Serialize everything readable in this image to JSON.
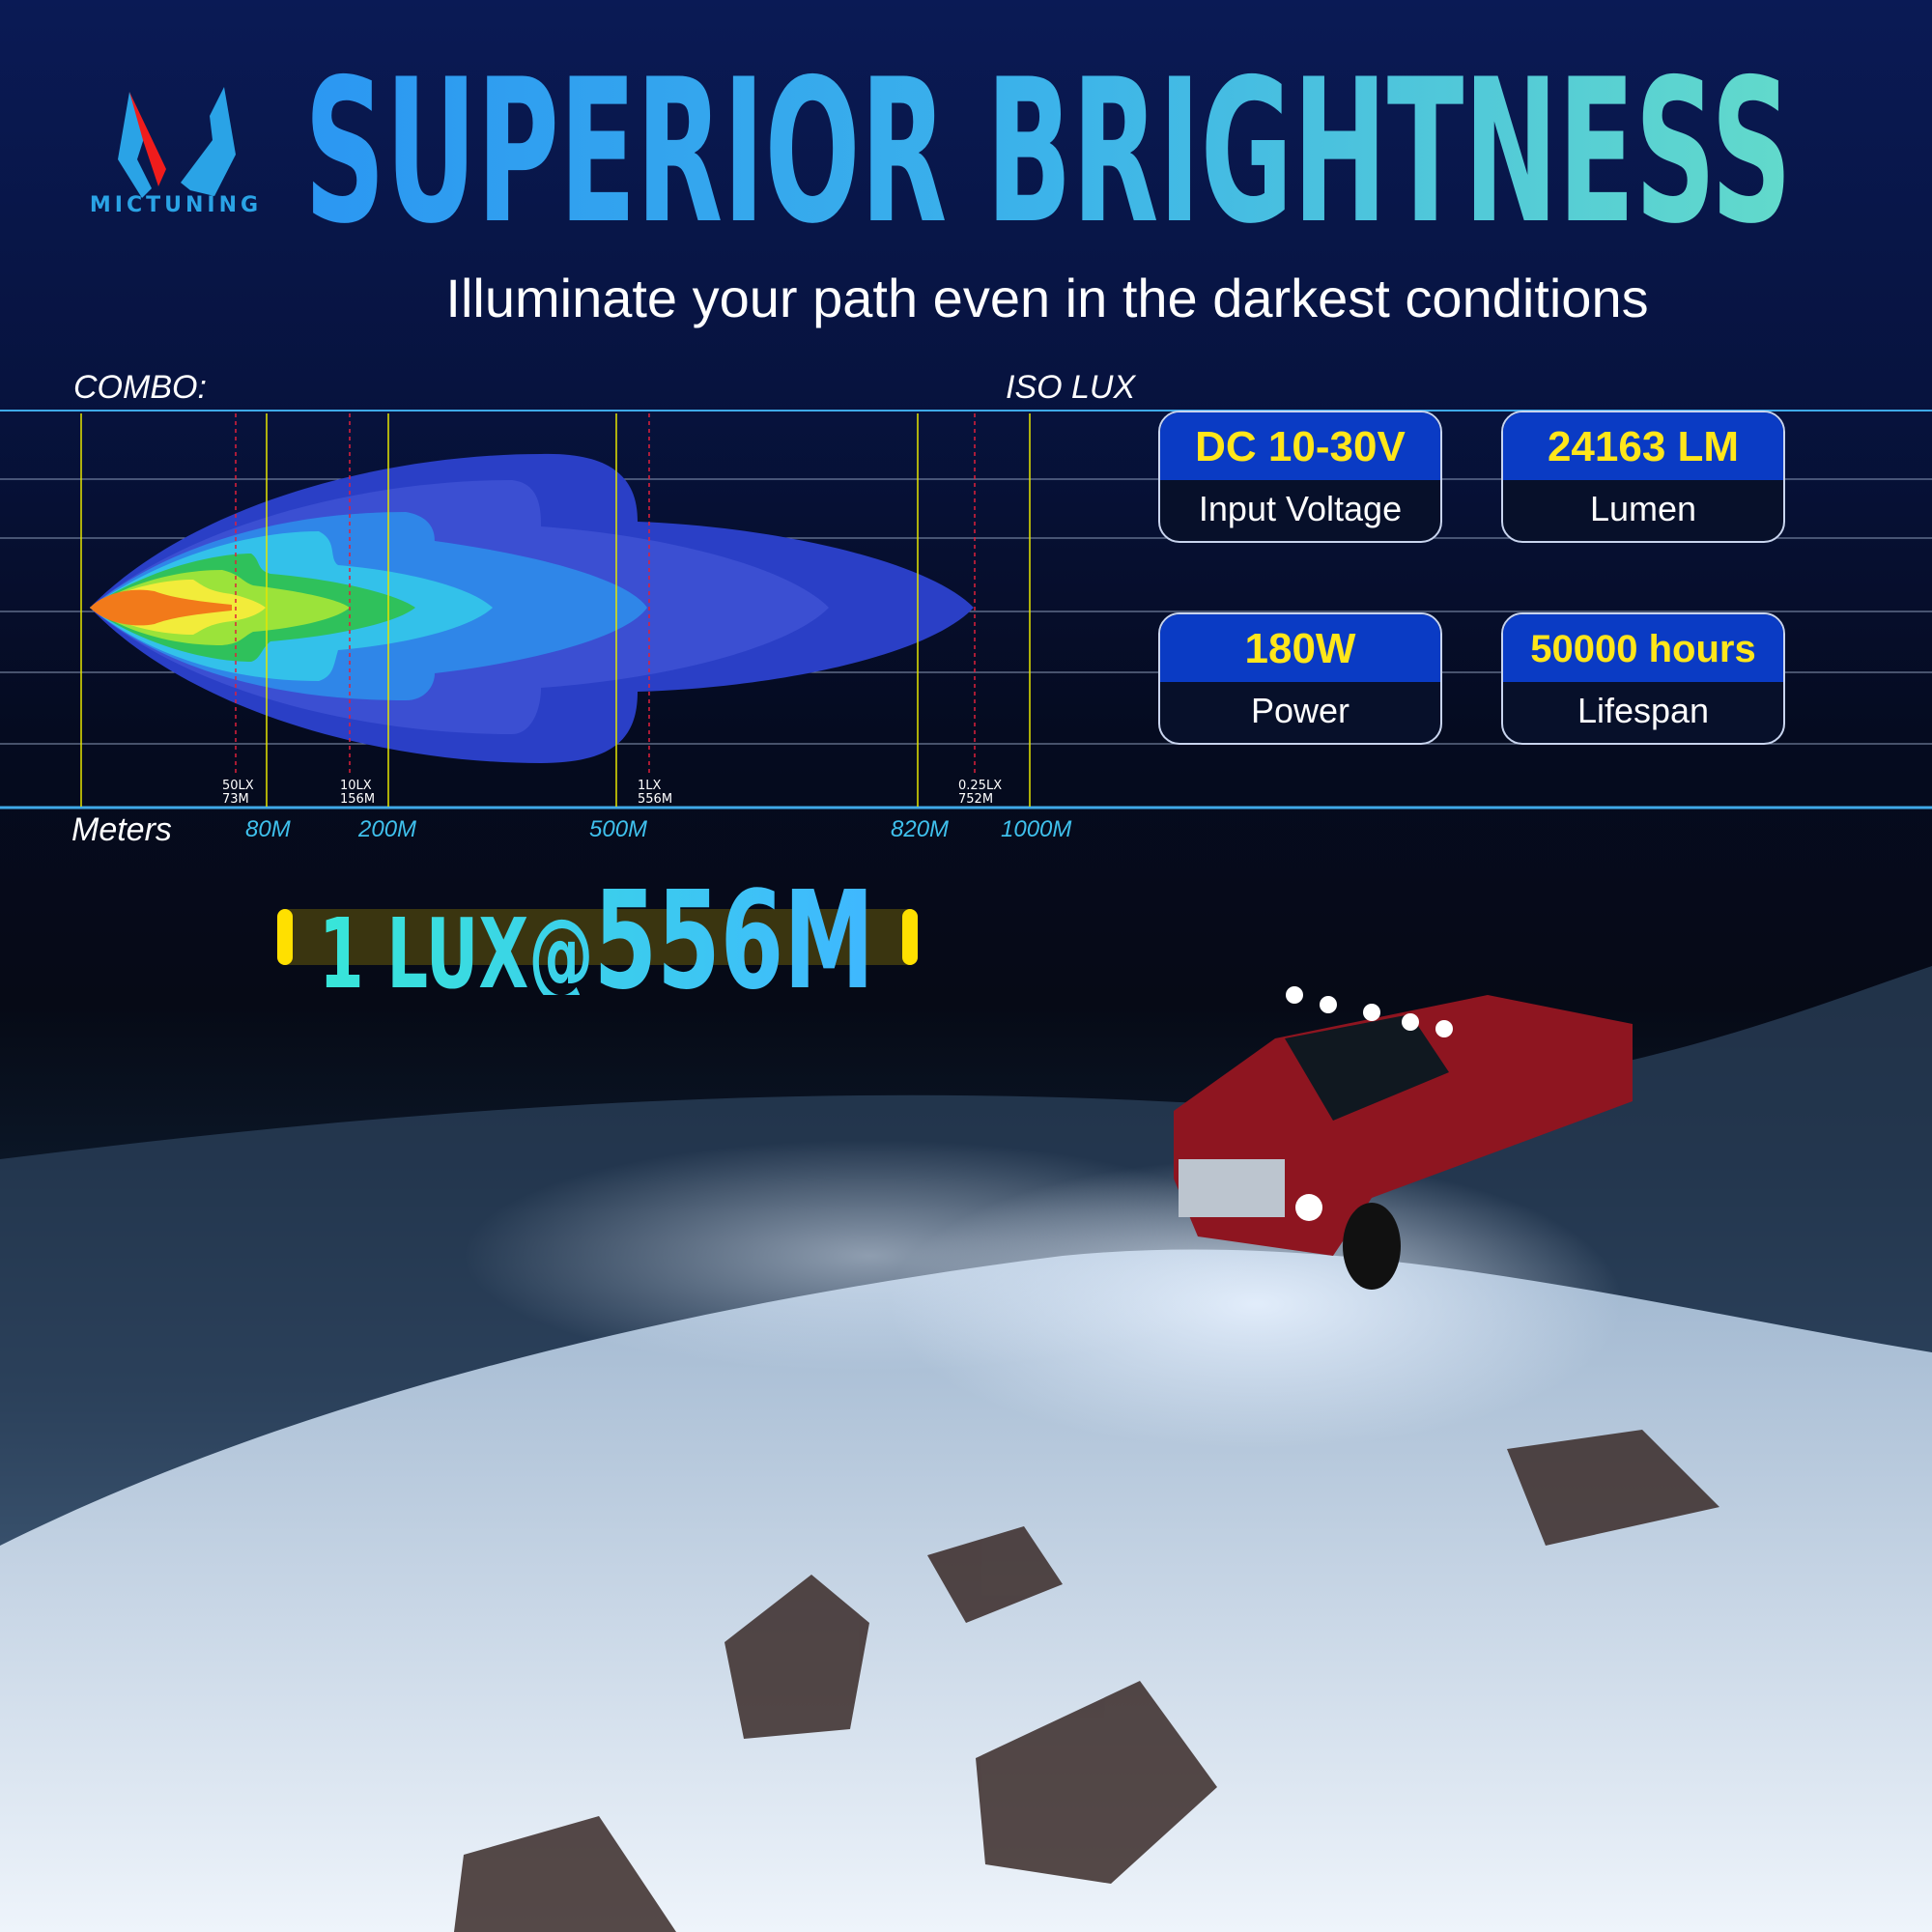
{
  "brand": {
    "name": "MICTUNING"
  },
  "header": {
    "title": "SUPERIOR BRIGHTNESS",
    "subtitle": "Illuminate your path even in the darkest conditions"
  },
  "beam_chart": {
    "mode_label": "COMBO:",
    "iso_label": "ISO LUX",
    "axis_label": "Meters",
    "distance_ticks": [
      "80M",
      "200M",
      "500M",
      "820M",
      "1000M"
    ],
    "lux_markers": [
      {
        "lux": "50LX",
        "distance": "73M"
      },
      {
        "lux": "10LX",
        "distance": "156M"
      },
      {
        "lux": "1LX",
        "distance": "556M"
      },
      {
        "lux": "0.25LX",
        "distance": "752M"
      }
    ],
    "colors": {
      "grid_yellow": "#e6e600",
      "marker_red": "#e0203a",
      "axis_blue": "#3fa9e8"
    }
  },
  "specs": [
    {
      "value": "DC 10-30V",
      "label": "Input Voltage"
    },
    {
      "value": "24163 LM",
      "label": "Lumen"
    },
    {
      "value": "180W",
      "label": "Power"
    },
    {
      "value": "50000 hours",
      "label": "Lifespan"
    }
  ],
  "highlight": {
    "prefix": "1 LUX@",
    "value": "556M"
  }
}
